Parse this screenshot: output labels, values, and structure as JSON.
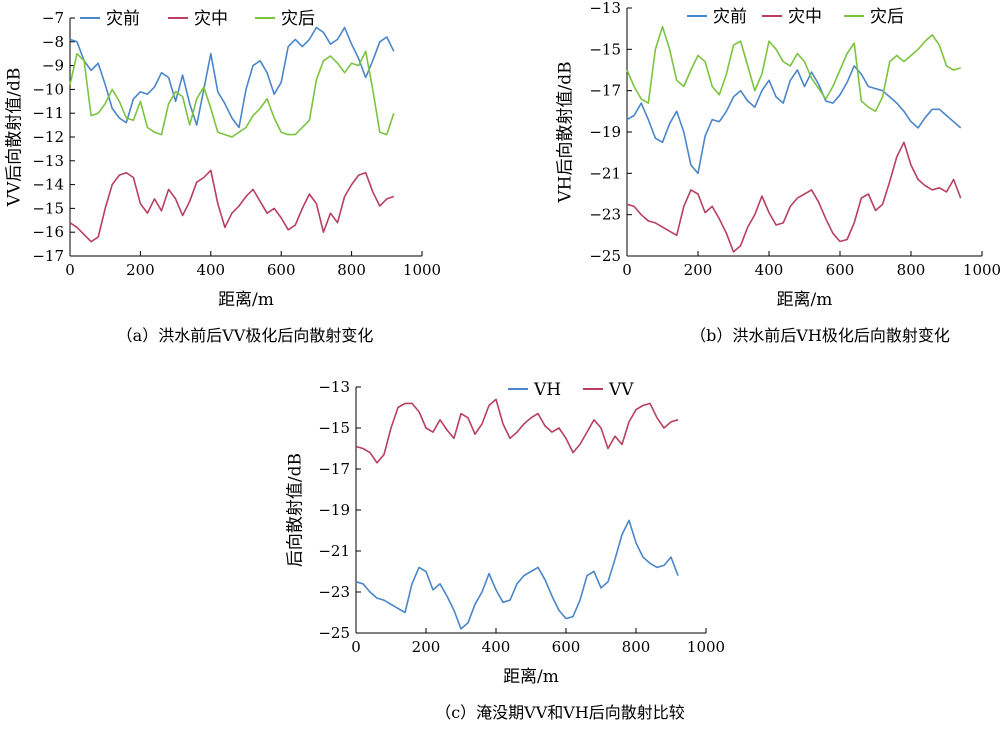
{
  "chart_data": [
    {
      "id": "a",
      "type": "line",
      "caption": "（a）洪水前后VV极化后向散射变化",
      "xlabel": "距离/m",
      "ylabel": "VV后向散射值/dB",
      "xlim": [
        0,
        1000
      ],
      "ylim": [
        -17,
        -7
      ],
      "xticks": [
        0,
        200,
        400,
        600,
        800,
        1000
      ],
      "yticks": [
        -7,
        -8,
        -9,
        -10,
        -11,
        -12,
        -13,
        -14,
        -15,
        -16,
        -17
      ],
      "legend_position": "top",
      "series": [
        {
          "name": "灾前",
          "color": "#4a86c8",
          "x": [
            0,
            20,
            40,
            60,
            80,
            100,
            120,
            140,
            160,
            180,
            200,
            220,
            240,
            260,
            280,
            300,
            320,
            340,
            360,
            380,
            400,
            420,
            440,
            460,
            480,
            500,
            520,
            540,
            560,
            580,
            600,
            620,
            640,
            660,
            680,
            700,
            720,
            740,
            760,
            780,
            800,
            820,
            840,
            860,
            880,
            900,
            920
          ],
          "y": [
            -7.9,
            -8.0,
            -8.8,
            -9.2,
            -8.9,
            -9.8,
            -10.8,
            -11.2,
            -11.4,
            -10.4,
            -10.1,
            -10.2,
            -9.9,
            -9.3,
            -9.5,
            -10.5,
            -9.4,
            -10.6,
            -11.5,
            -10.0,
            -8.5,
            -10.1,
            -10.6,
            -11.2,
            -11.6,
            -10.0,
            -9.0,
            -8.8,
            -9.3,
            -10.2,
            -9.7,
            -8.2,
            -7.9,
            -8.2,
            -7.9,
            -7.4,
            -7.6,
            -8.1,
            -7.9,
            -7.4,
            -8.1,
            -8.7,
            -9.5,
            -8.8,
            -8.0,
            -7.8,
            -8.4
          ]
        },
        {
          "name": "灾中",
          "color": "#b8405e",
          "x": [
            0,
            20,
            40,
            60,
            80,
            100,
            120,
            140,
            160,
            180,
            200,
            220,
            240,
            260,
            280,
            300,
            320,
            340,
            360,
            380,
            400,
            420,
            440,
            460,
            480,
            500,
            520,
            540,
            560,
            580,
            600,
            620,
            640,
            660,
            680,
            700,
            720,
            740,
            760,
            780,
            800,
            820,
            840,
            860,
            880,
            900,
            920
          ],
          "y": [
            -15.6,
            -15.8,
            -16.1,
            -16.4,
            -16.2,
            -15.0,
            -14.0,
            -13.6,
            -13.5,
            -13.7,
            -14.8,
            -15.2,
            -14.6,
            -15.1,
            -14.2,
            -14.6,
            -15.3,
            -14.7,
            -13.9,
            -13.7,
            -13.4,
            -14.8,
            -15.8,
            -15.2,
            -14.9,
            -14.5,
            -14.2,
            -14.7,
            -15.2,
            -15.0,
            -15.4,
            -15.9,
            -15.7,
            -15.0,
            -14.4,
            -14.8,
            -16.0,
            -15.2,
            -15.6,
            -14.5,
            -14.0,
            -13.6,
            -13.5,
            -14.3,
            -14.9,
            -14.6,
            -14.5
          ]
        },
        {
          "name": "灾后",
          "color": "#7cc341",
          "x": [
            0,
            20,
            40,
            60,
            80,
            100,
            120,
            140,
            160,
            180,
            200,
            220,
            240,
            260,
            280,
            300,
            320,
            340,
            360,
            380,
            400,
            420,
            440,
            460,
            480,
            500,
            520,
            540,
            560,
            580,
            600,
            620,
            640,
            660,
            680,
            700,
            720,
            740,
            760,
            780,
            800,
            820,
            840,
            860,
            880,
            900,
            920
          ],
          "y": [
            -9.8,
            -8.5,
            -8.8,
            -11.1,
            -11.0,
            -10.6,
            -10.0,
            -10.5,
            -11.2,
            -11.3,
            -10.5,
            -11.6,
            -11.8,
            -11.9,
            -10.6,
            -10.1,
            -10.3,
            -11.5,
            -10.4,
            -9.9,
            -10.8,
            -11.8,
            -11.9,
            -12.0,
            -11.8,
            -11.6,
            -11.1,
            -10.8,
            -10.4,
            -11.2,
            -11.8,
            -11.9,
            -11.9,
            -11.6,
            -11.3,
            -9.6,
            -8.8,
            -8.6,
            -8.9,
            -9.3,
            -8.9,
            -9.0,
            -8.4,
            -10.0,
            -11.8,
            -11.9,
            -11.0
          ]
        }
      ]
    },
    {
      "id": "b",
      "type": "line",
      "caption": "（b）洪水前后VH极化后向散射变化",
      "xlabel": "距离/m",
      "ylabel": "VH后向散射值/dB",
      "xlim": [
        0,
        1000
      ],
      "ylim": [
        -25,
        -13
      ],
      "xticks": [
        0,
        200,
        400,
        600,
        800,
        1000
      ],
      "yticks": [
        -13,
        -15,
        -17,
        -19,
        -21,
        -23,
        -25
      ],
      "legend_position": "top",
      "series": [
        {
          "name": "灾前",
          "color": "#4a86c8",
          "x": [
            0,
            20,
            40,
            60,
            80,
            100,
            120,
            140,
            160,
            180,
            200,
            220,
            240,
            260,
            280,
            300,
            320,
            340,
            360,
            380,
            400,
            420,
            440,
            460,
            480,
            500,
            520,
            540,
            560,
            580,
            600,
            620,
            640,
            660,
            680,
            700,
            720,
            740,
            760,
            780,
            800,
            820,
            840,
            860,
            880,
            900,
            920,
            940
          ],
          "y": [
            -18.4,
            -18.2,
            -17.6,
            -18.4,
            -19.3,
            -19.5,
            -18.6,
            -18.0,
            -19.0,
            -20.6,
            -21.0,
            -19.2,
            -18.4,
            -18.5,
            -18.0,
            -17.3,
            -17.0,
            -17.5,
            -17.8,
            -17.0,
            -16.5,
            -17.3,
            -17.6,
            -16.5,
            -16.0,
            -16.8,
            -16.1,
            -16.7,
            -17.5,
            -17.6,
            -17.2,
            -16.6,
            -15.8,
            -16.2,
            -16.8,
            -16.9,
            -17.0,
            -17.3,
            -17.6,
            -18.0,
            -18.5,
            -18.8,
            -18.3,
            -17.9,
            -17.9,
            -18.2,
            -18.5,
            -18.8
          ]
        },
        {
          "name": "灾中",
          "color": "#b8405e",
          "x": [
            0,
            20,
            40,
            60,
            80,
            100,
            120,
            140,
            160,
            180,
            200,
            220,
            240,
            260,
            280,
            300,
            320,
            340,
            360,
            380,
            400,
            420,
            440,
            460,
            480,
            500,
            520,
            540,
            560,
            580,
            600,
            620,
            640,
            660,
            680,
            700,
            720,
            740,
            760,
            780,
            800,
            820,
            840,
            860,
            880,
            900,
            920,
            940
          ],
          "y": [
            -22.5,
            -22.6,
            -23.0,
            -23.3,
            -23.4,
            -23.6,
            -23.8,
            -24.0,
            -22.6,
            -21.8,
            -22.0,
            -22.9,
            -22.6,
            -23.2,
            -23.9,
            -24.8,
            -24.5,
            -23.6,
            -23.0,
            -22.1,
            -22.9,
            -23.5,
            -23.4,
            -22.6,
            -22.2,
            -22.0,
            -21.8,
            -22.4,
            -23.2,
            -23.9,
            -24.3,
            -24.2,
            -23.4,
            -22.2,
            -22.0,
            -22.8,
            -22.5,
            -21.4,
            -20.2,
            -19.5,
            -20.6,
            -21.3,
            -21.6,
            -21.8,
            -21.7,
            -21.9,
            -21.3,
            -22.2
          ]
        },
        {
          "name": "灾后",
          "color": "#7cc341",
          "x": [
            0,
            20,
            40,
            60,
            80,
            100,
            120,
            140,
            160,
            180,
            200,
            220,
            240,
            260,
            280,
            300,
            320,
            340,
            360,
            380,
            400,
            420,
            440,
            460,
            480,
            500,
            520,
            540,
            560,
            580,
            600,
            620,
            640,
            660,
            680,
            700,
            720,
            740,
            760,
            780,
            800,
            820,
            840,
            860,
            880,
            900,
            920,
            940
          ],
          "y": [
            -16.0,
            -16.8,
            -17.4,
            -17.6,
            -15.0,
            -13.9,
            -15.0,
            -16.5,
            -16.8,
            -16.0,
            -15.3,
            -15.6,
            -16.8,
            -17.2,
            -16.2,
            -14.8,
            -14.6,
            -15.8,
            -17.0,
            -16.2,
            -14.6,
            -15.0,
            -15.6,
            -15.8,
            -15.2,
            -15.6,
            -16.4,
            -16.9,
            -17.4,
            -16.8,
            -16.0,
            -15.2,
            -14.7,
            -17.5,
            -17.8,
            -18.0,
            -17.3,
            -15.6,
            -15.3,
            -15.6,
            -15.3,
            -15.0,
            -14.6,
            -14.3,
            -14.8,
            -15.8,
            -16.0,
            -15.9
          ]
        }
      ]
    },
    {
      "id": "c",
      "type": "line",
      "caption": "（c）淹没期VV和VH后向散射比较",
      "xlabel": "距离/m",
      "ylabel": "后向散射值/dB",
      "xlim": [
        0,
        1000
      ],
      "ylim": [
        -25,
        -13
      ],
      "xticks": [
        0,
        200,
        400,
        600,
        800,
        1000
      ],
      "yticks": [
        -13,
        -15,
        -17,
        -19,
        -21,
        -23,
        -25
      ],
      "legend_position": "top",
      "series": [
        {
          "name": "VH",
          "color": "#4a86c8",
          "x": [
            0,
            20,
            40,
            60,
            80,
            100,
            120,
            140,
            160,
            180,
            200,
            220,
            240,
            260,
            280,
            300,
            320,
            340,
            360,
            380,
            400,
            420,
            440,
            460,
            480,
            500,
            520,
            540,
            560,
            580,
            600,
            620,
            640,
            660,
            680,
            700,
            720,
            740,
            760,
            780,
            800,
            820,
            840,
            860,
            880,
            900,
            920
          ],
          "y": [
            -22.5,
            -22.6,
            -23.0,
            -23.3,
            -23.4,
            -23.6,
            -23.8,
            -24.0,
            -22.6,
            -21.8,
            -22.0,
            -22.9,
            -22.6,
            -23.2,
            -23.9,
            -24.8,
            -24.5,
            -23.6,
            -23.0,
            -22.1,
            -22.9,
            -23.5,
            -23.4,
            -22.6,
            -22.2,
            -22.0,
            -21.8,
            -22.4,
            -23.2,
            -23.9,
            -24.3,
            -24.2,
            -23.4,
            -22.2,
            -22.0,
            -22.8,
            -22.5,
            -21.4,
            -20.2,
            -19.5,
            -20.6,
            -21.3,
            -21.6,
            -21.8,
            -21.7,
            -21.3,
            -22.2
          ]
        },
        {
          "name": "VV",
          "color": "#b8405e",
          "x": [
            0,
            20,
            40,
            60,
            80,
            100,
            120,
            140,
            160,
            180,
            200,
            220,
            240,
            260,
            280,
            300,
            320,
            340,
            360,
            380,
            400,
            420,
            440,
            460,
            480,
            500,
            520,
            540,
            560,
            580,
            600,
            620,
            640,
            660,
            680,
            700,
            720,
            740,
            760,
            780,
            800,
            820,
            840,
            860,
            880,
            900,
            920
          ],
          "y": [
            -15.9,
            -16.0,
            -16.2,
            -16.7,
            -16.3,
            -15.0,
            -14.0,
            -13.8,
            -13.8,
            -14.2,
            -15.0,
            -15.2,
            -14.6,
            -15.1,
            -15.5,
            -14.3,
            -14.5,
            -15.3,
            -14.8,
            -13.9,
            -13.6,
            -14.8,
            -15.5,
            -15.2,
            -14.8,
            -14.5,
            -14.3,
            -14.9,
            -15.2,
            -15.0,
            -15.5,
            -16.2,
            -15.8,
            -15.2,
            -14.6,
            -15.0,
            -16.0,
            -15.4,
            -15.8,
            -14.7,
            -14.1,
            -13.9,
            -13.8,
            -14.5,
            -15.0,
            -14.7,
            -14.6
          ]
        }
      ]
    }
  ]
}
